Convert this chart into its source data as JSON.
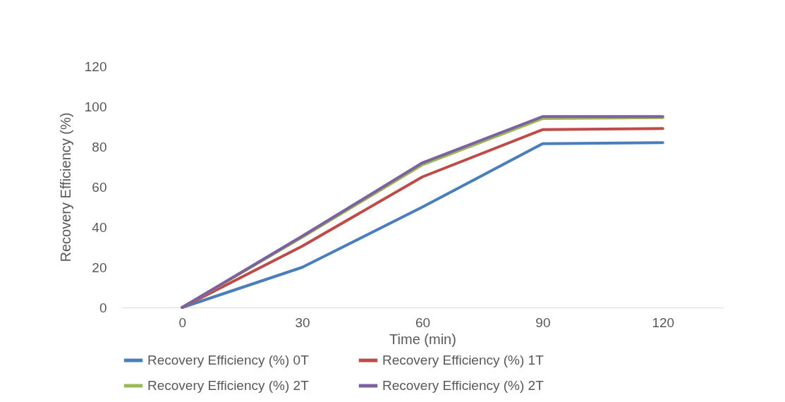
{
  "chart_data": {
    "type": "line",
    "xlabel": "Time (min)",
    "ylabel": "Recovery Efficiency (%)",
    "categories": [
      "0",
      "30",
      "60",
      "90",
      "120"
    ],
    "ylim": [
      0,
      120
    ],
    "yticks": [
      0,
      20,
      40,
      60,
      80,
      100,
      120
    ],
    "grid": false,
    "legend": "bottom",
    "series": [
      {
        "name": "Recovery Efficiency (%) 0T",
        "color": "#4a7ebb",
        "values": [
          0,
          20,
          50,
          81.5,
          82
        ]
      },
      {
        "name": "Recovery Efficiency (%) 1T",
        "color": "#be4b48",
        "values": [
          0,
          30.5,
          65,
          88.5,
          89
        ]
      },
      {
        "name": "Recovery Efficiency (%) 2T",
        "color": "#98b954",
        "values": [
          0,
          35,
          71,
          94,
          94.5
        ]
      },
      {
        "name": "Recovery Efficiency (%) 2T",
        "color": "#7d60a0",
        "values": [
          0,
          35.5,
          72,
          95,
          95
        ]
      }
    ]
  }
}
